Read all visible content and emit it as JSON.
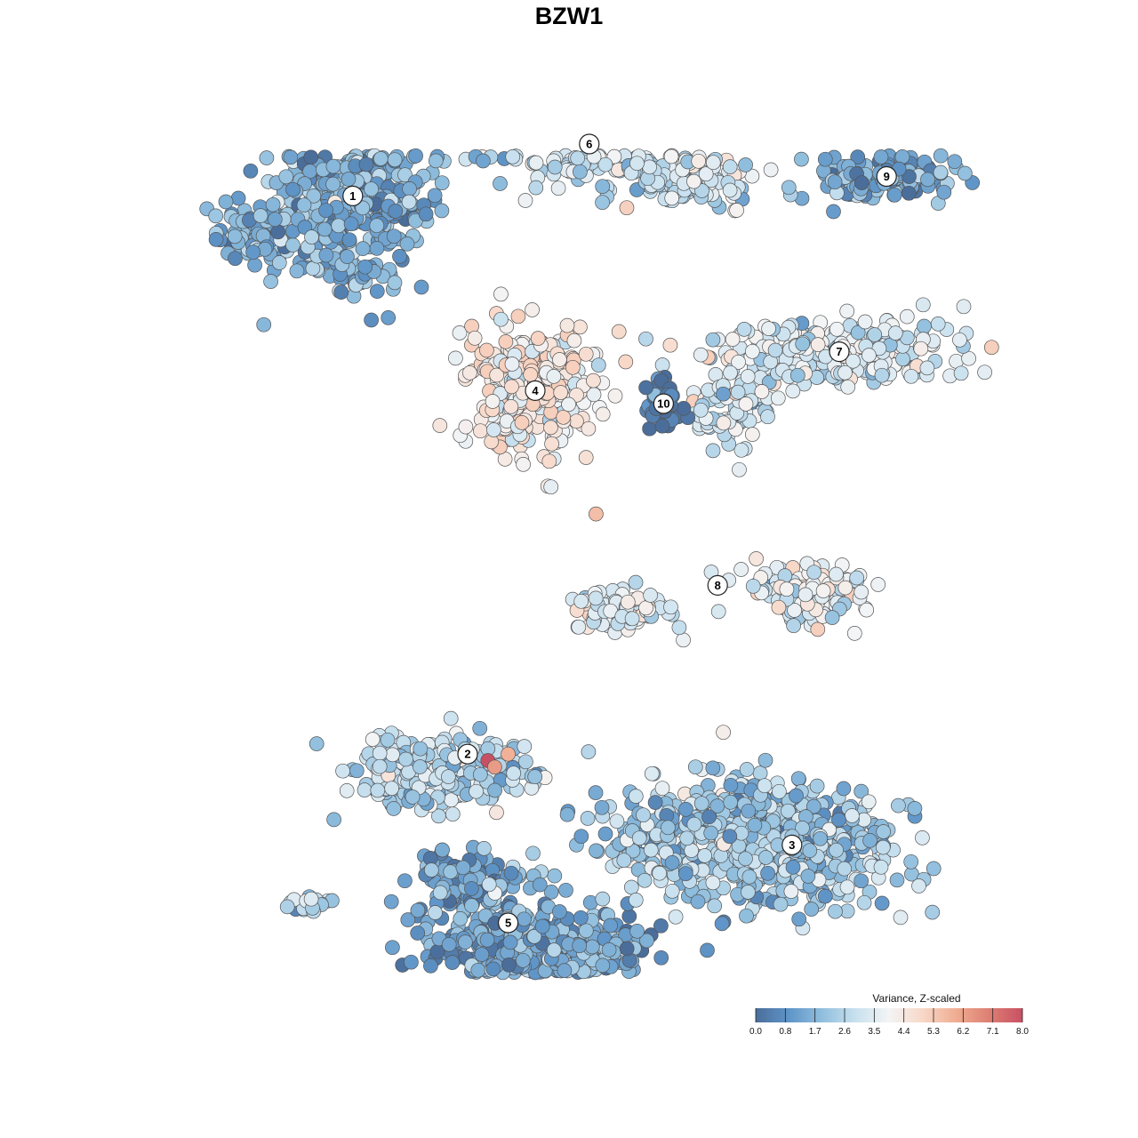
{
  "chart_data": {
    "type": "scatter",
    "title": "BZW1",
    "xlabel": "",
    "ylabel": "",
    "grid": false,
    "axes_visible": false,
    "clusters": [
      {
        "label": "1",
        "x": -32,
        "y": 52,
        "value": 1.6
      },
      {
        "label": "2",
        "x": -15,
        "y": -34,
        "value": 2.7
      },
      {
        "label": "3",
        "x": 33,
        "y": -48,
        "value": 2.3
      },
      {
        "label": "4",
        "x": -5,
        "y": 22,
        "value": 4.4
      },
      {
        "label": "5",
        "x": -9,
        "y": -60,
        "value": 1.3
      },
      {
        "label": "6",
        "x": 3,
        "y": 60,
        "value": 3.0
      },
      {
        "label": "7",
        "x": 40,
        "y": 28,
        "value": 3.3
      },
      {
        "label": "8",
        "x": 22,
        "y": -8,
        "value": 3.6
      },
      {
        "label": "9",
        "x": 47,
        "y": 55,
        "value": 1.4
      },
      {
        "label": "10",
        "x": 14,
        "y": 20,
        "value": 0.4
      }
    ],
    "highlighted_points": [
      {
        "x": -12,
        "y": -35,
        "value": 8.0
      },
      {
        "x": -11,
        "y": -36,
        "value": 6.4
      },
      {
        "x": -9,
        "y": -34,
        "value": 5.9
      },
      {
        "x": 4,
        "y": 3,
        "value": 5.6
      }
    ],
    "colorbar": {
      "title": "Variance, Z-scaled",
      "min": 0.0,
      "max": 8.0,
      "ticks": [
        "0.0",
        "0.8",
        "1.7",
        "2.6",
        "3.5",
        "4.4",
        "5.3",
        "6.2",
        "7.1",
        "8.0"
      ],
      "colors": [
        "#4a6d9a",
        "#5f95c8",
        "#91bfde",
        "#c9e1ef",
        "#f3f4f5",
        "#f8d8c8",
        "#f0ad92",
        "#dd7f73",
        "#c85064"
      ],
      "placement": "bottom-right"
    }
  }
}
